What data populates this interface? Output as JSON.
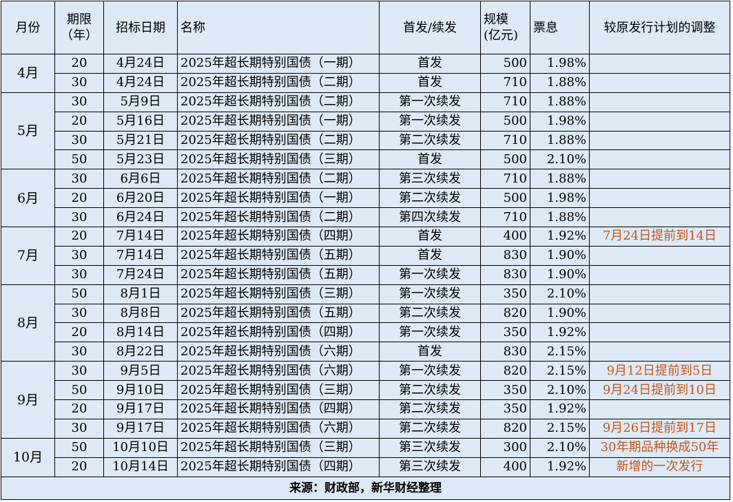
{
  "header": {
    "columns": [
      "月份",
      "期限\n（年）",
      "招标日期",
      "名称",
      "首发/续发",
      "规模\n(亿元)",
      "票息",
      "较原发行计划的调整"
    ]
  },
  "table": {
    "groups": [
      {
        "month": "4月",
        "rows": [
          {
            "term": 20,
            "date": "4月24日",
            "name": "2025年超长期特别国债（一期）",
            "type": "首发",
            "size": 500,
            "coupon": "1.98%"
          },
          {
            "term": 30,
            "date": "4月24日",
            "name": "2025年超长期特别国债（二期）",
            "type": "首发",
            "size": 710,
            "coupon": "1.88%"
          }
        ]
      },
      {
        "month": "5月",
        "rows": [
          {
            "term": 30,
            "date": "5月9日",
            "name": "2025年超长期特别国债（二期）",
            "type": "第一次续发",
            "size": 710,
            "coupon": "1.88%"
          },
          {
            "term": 20,
            "date": "5月16日",
            "name": "2025年超长期特别国债（一期）",
            "type": "第一次续发",
            "size": 500,
            "coupon": "1.98%"
          },
          {
            "term": 30,
            "date": "5月21日",
            "name": "2025年超长期特别国债（二期）",
            "type": "第二次续发",
            "size": 710,
            "coupon": "1.88%"
          },
          {
            "term": 50,
            "date": "5月23日",
            "name": "2025年超长期特别国债（三期）",
            "type": "首发",
            "size": 500,
            "coupon": "2.10%"
          }
        ]
      },
      {
        "month": "6月",
        "rows": [
          {
            "term": 30,
            "date": "6月6日",
            "name": "2025年超长期特别国债（二期）",
            "type": "第三次续发",
            "size": 710,
            "coupon": "1.88%"
          },
          {
            "term": 20,
            "date": "6月20日",
            "name": "2025年超长期特别国债（一期）",
            "type": "第二次续发",
            "size": 500,
            "coupon": "1.98%"
          },
          {
            "term": 30,
            "date": "6月24日",
            "name": "2025年超长期特别国债（二期）",
            "type": "第四次续发",
            "size": 710,
            "coupon": "1.88%"
          }
        ]
      },
      {
        "month": "7月",
        "rows": [
          {
            "term": 20,
            "date": "7月14日",
            "name": "2025年超长期特别国债（四期）",
            "type": "首发",
            "size": 400,
            "coupon": "1.92%",
            "note": "7月24日提前到14日"
          },
          {
            "term": 30,
            "date": "7月14日",
            "name": "2025年超长期特别国债（五期）",
            "type": "首发",
            "size": 830,
            "coupon": "1.90%"
          },
          {
            "term": 30,
            "date": "7月24日",
            "name": "2025年超长期特别国债（五期）",
            "type": "第一次续发",
            "size": 830,
            "coupon": "1.90%"
          }
        ]
      },
      {
        "month": "8月",
        "rows": [
          {
            "term": 50,
            "date": "8月1日",
            "name": "2025年超长期特别国债（三期）",
            "type": "第一次续发",
            "size": 350,
            "coupon": "2.10%"
          },
          {
            "term": 30,
            "date": "8月8日",
            "name": "2025年超长期特别国债（五期）",
            "type": "第二次续发",
            "size": 820,
            "coupon": "1.90%"
          },
          {
            "term": 20,
            "date": "8月14日",
            "name": "2025年超长期特别国债（四期）",
            "type": "第一次续发",
            "size": 350,
            "coupon": "1.92%"
          },
          {
            "term": 30,
            "date": "8月22日",
            "name": "2025年超长期特别国债（六期）",
            "type": "首发",
            "size": 830,
            "coupon": "2.15%"
          }
        ]
      },
      {
        "month": "9月",
        "rows": [
          {
            "term": 30,
            "date": "9月5日",
            "name": "2025年超长期特别国债（六期）",
            "type": "第一次续发",
            "size": 820,
            "coupon": "2.15%",
            "note": "9月12日提前到5日"
          },
          {
            "term": 50,
            "date": "9月10日",
            "name": "2025年超长期特别国债（三期）",
            "type": "第二次续发",
            "size": 350,
            "coupon": "2.10%",
            "note": "9月24日提前到10日"
          },
          {
            "term": 20,
            "date": "9月17日",
            "name": "2025年超长期特别国债（四期）",
            "type": "第二次续发",
            "size": 350,
            "coupon": "1.92%"
          },
          {
            "term": 30,
            "date": "9月17日",
            "name": "2025年超长期特别国债（六期）",
            "type": "第二次续发",
            "size": 820,
            "coupon": "2.15%",
            "note": "9月26日提前到17日"
          }
        ]
      },
      {
        "month": "10月",
        "rows": [
          {
            "term": 50,
            "date": "10月10日",
            "name": "2025年超长期特别国债（三期）",
            "type": "第三次续发",
            "size": 300,
            "coupon": "2.10%",
            "note": "30年期品种换成50年"
          },
          {
            "term": 20,
            "date": "10月14日",
            "name": "2025年超长期特别国债（四期）",
            "type": "第三次续发",
            "size": 400,
            "coupon": "1.92%",
            "note": "新增的一次发行"
          }
        ]
      }
    ]
  },
  "footer": {
    "source": "来源：财政部，新华财经整理"
  }
}
